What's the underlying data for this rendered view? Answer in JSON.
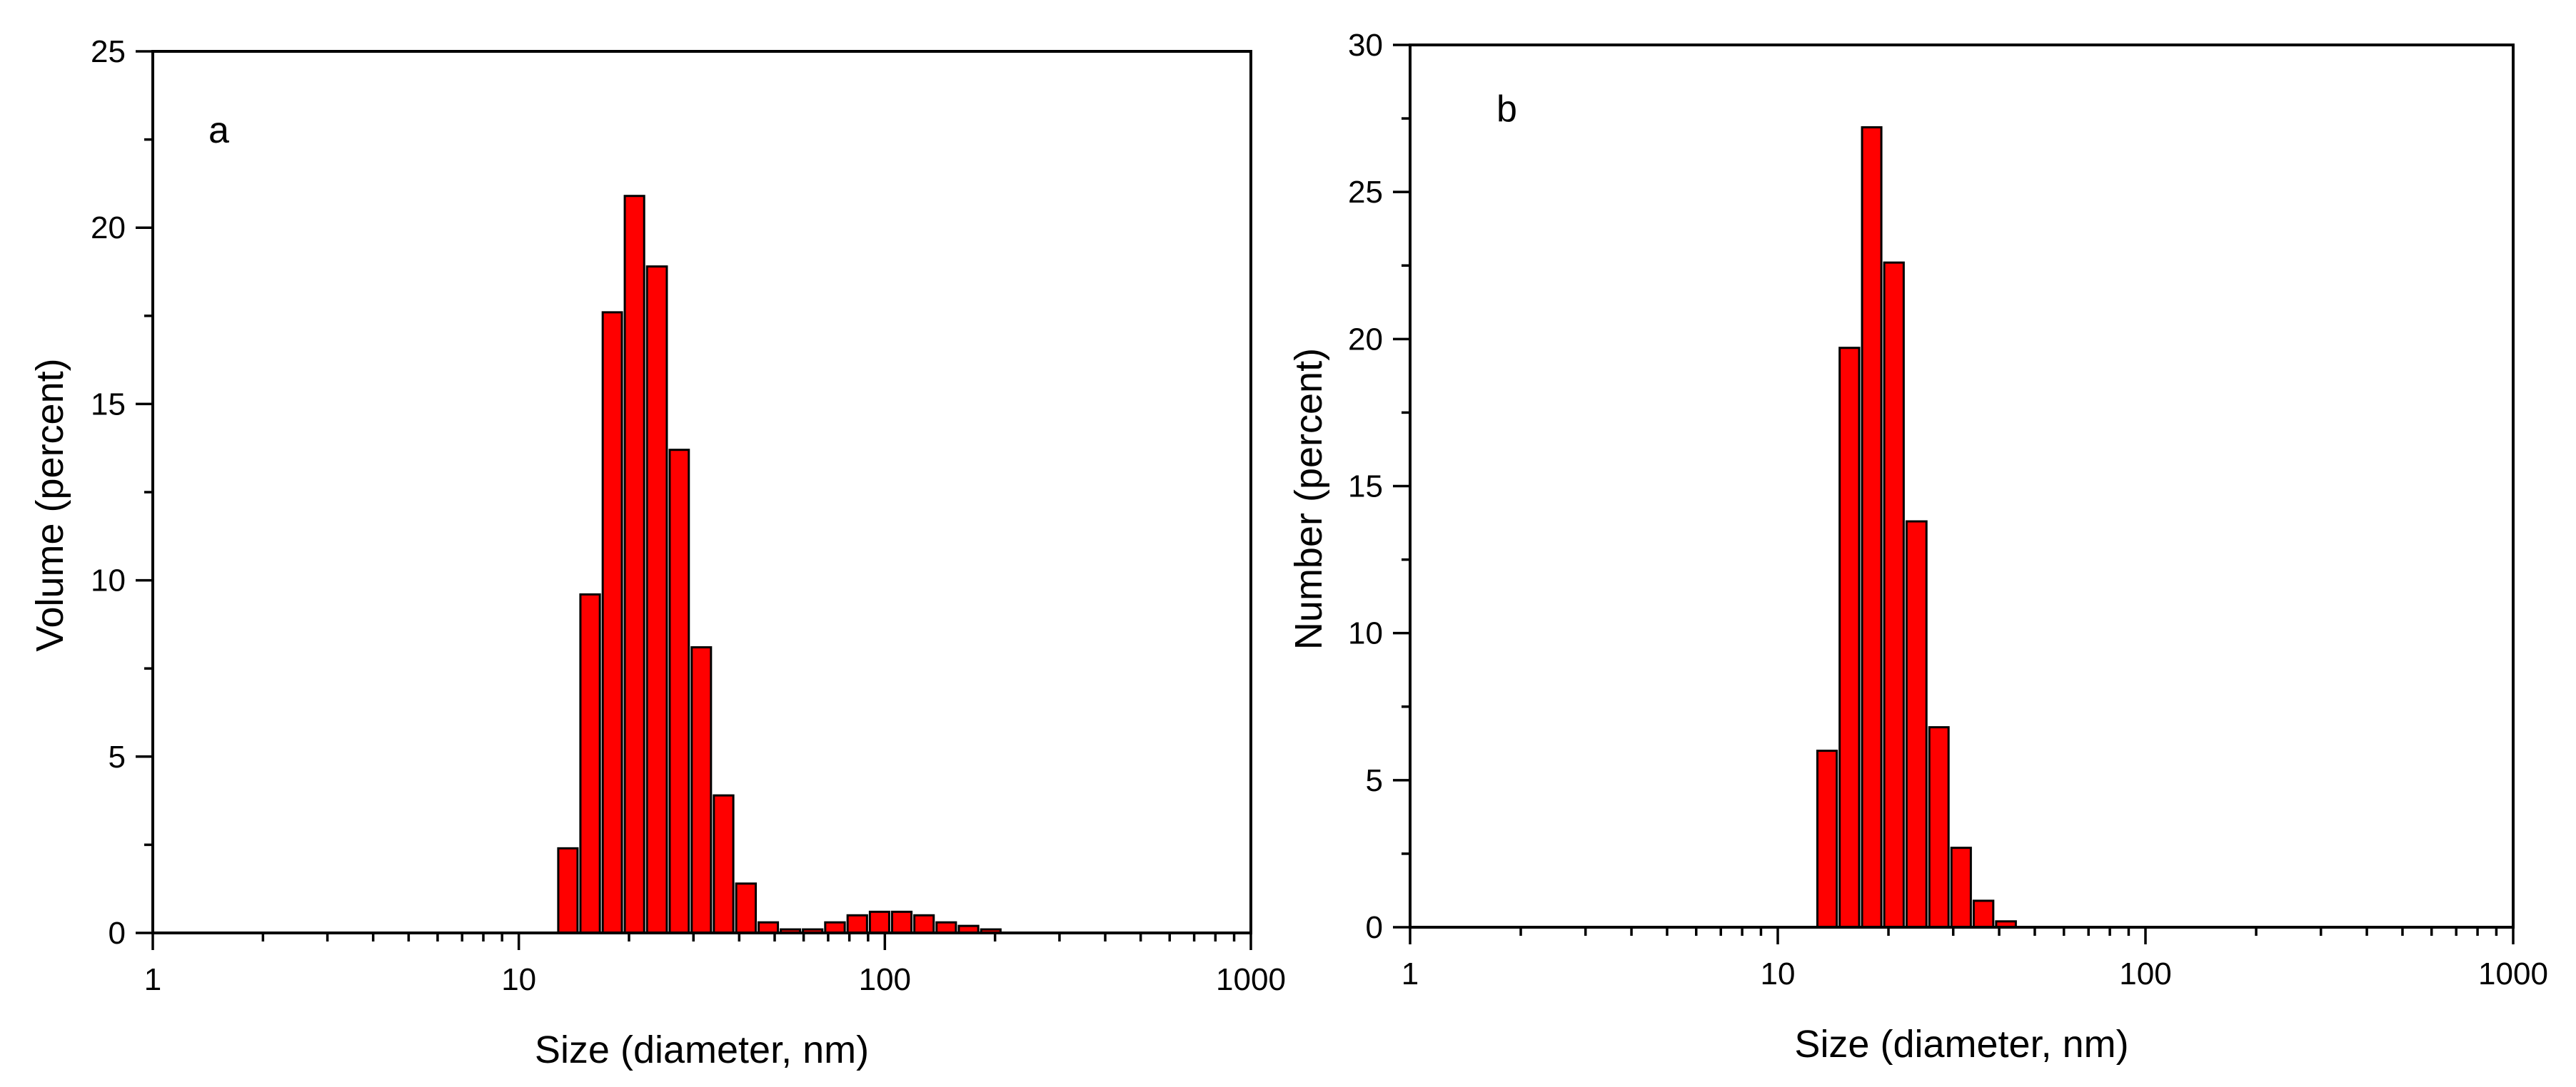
{
  "chart_data": [
    {
      "type": "bar",
      "panel_label": "a",
      "xlabel": "Size (diameter, nm)",
      "ylabel": "Volume (percent)",
      "xscale": "log",
      "xlim": [
        1,
        1000
      ],
      "ylim": [
        0,
        25
      ],
      "xticks": [
        "1",
        "10",
        "100",
        "1000"
      ],
      "yticks": [
        "0",
        "5",
        "10",
        "15",
        "20",
        "25"
      ],
      "bar_color": "#ff0000",
      "bin_edges_nm": [
        12.7,
        14.6,
        16.8,
        19.3,
        22.2,
        25.6,
        29.4,
        33.8,
        38.9,
        44.8,
        51.5,
        59.2,
        68.1,
        78.4,
        90.2,
        103.7,
        119.3,
        137.2,
        157.8,
        181.6,
        208.9,
        240.3
      ],
      "values": [
        2.4,
        9.6,
        17.6,
        20.9,
        18.9,
        13.7,
        8.1,
        3.9,
        1.4,
        0.3,
        0.1,
        0.1,
        0.3,
        0.5,
        0.6,
        0.6,
        0.5,
        0.3,
        0.2,
        0.1,
        0.0
      ]
    },
    {
      "type": "bar",
      "panel_label": "b",
      "xlabel": "Size (diameter, nm)",
      "ylabel": "Number (percent)",
      "xscale": "log",
      "xlim": [
        1,
        1000
      ],
      "ylim": [
        0,
        30
      ],
      "xticks": [
        "1",
        "10",
        "100",
        "1000"
      ],
      "yticks": [
        "0",
        "5",
        "10",
        "15",
        "20",
        "25",
        "30"
      ],
      "bar_color": "#ff0000",
      "bin_edges_nm": [
        12.7,
        14.6,
        16.8,
        19.3,
        22.2,
        25.6,
        29.4,
        33.8,
        38.9,
        44.8
      ],
      "values": [
        6.0,
        19.7,
        27.2,
        22.6,
        13.8,
        6.8,
        2.7,
        0.9,
        0.2
      ]
    }
  ]
}
